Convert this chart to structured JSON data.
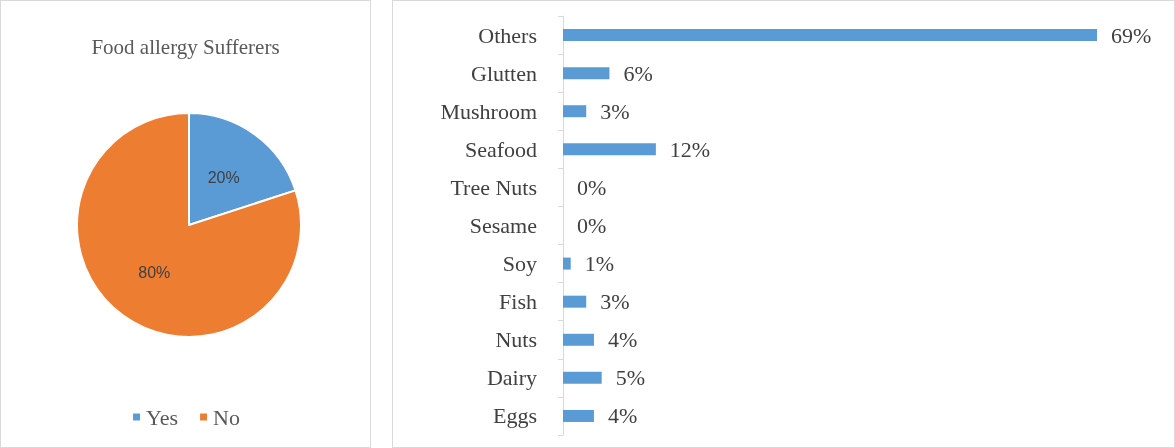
{
  "chart_data": [
    {
      "type": "pie",
      "title": "Food allergy Sufferers",
      "categories": [
        "Yes",
        "No"
      ],
      "values": [
        20,
        80
      ],
      "colors": [
        "#5b9bd5",
        "#ed7d31"
      ],
      "value_labels": [
        "20%",
        "80%"
      ],
      "legend": "bottom"
    },
    {
      "type": "bar",
      "orientation": "horizontal",
      "categories": [
        "Others",
        "Glutten",
        "Mushroom",
        "Seafood",
        "Tree Nuts",
        "Sesame",
        "Soy",
        "Fish",
        "Nuts",
        "Dairy",
        "Eggs"
      ],
      "values": [
        69,
        6,
        3,
        12,
        0,
        0,
        1,
        3,
        4,
        5,
        4
      ],
      "value_labels": [
        "69%",
        "6%",
        "3%",
        "12%",
        "0%",
        "0%",
        "1%",
        "3%",
        "4%",
        "5%",
        "4%"
      ],
      "color": "#5b9bd5"
    }
  ]
}
